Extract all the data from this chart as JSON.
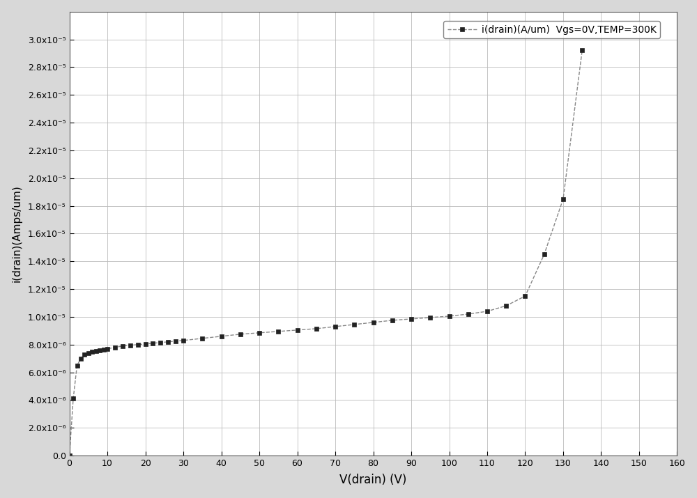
{
  "x": [
    0,
    1,
    2,
    3,
    4,
    5,
    6,
    7,
    8,
    9,
    10,
    12,
    14,
    16,
    18,
    20,
    22,
    24,
    26,
    28,
    30,
    35,
    40,
    45,
    50,
    55,
    60,
    65,
    70,
    75,
    80,
    85,
    90,
    95,
    100,
    105,
    110,
    115,
    120,
    125,
    130,
    135
  ],
  "y": [
    0.0,
    4.1e-06,
    6.5e-06,
    7e-06,
    7.3e-06,
    7.4e-06,
    7.5e-06,
    7.55e-06,
    7.6e-06,
    7.65e-06,
    7.7e-06,
    7.8e-06,
    7.9e-06,
    7.95e-06,
    8e-06,
    8.05e-06,
    8.1e-06,
    8.15e-06,
    8.2e-06,
    8.25e-06,
    8.3e-06,
    8.45e-06,
    8.6e-06,
    8.75e-06,
    8.85e-06,
    8.95e-06,
    9.05e-06,
    9.15e-06,
    9.3e-06,
    9.45e-06,
    9.6e-06,
    9.75e-06,
    9.85e-06,
    9.95e-06,
    1.005e-05,
    1.02e-05,
    1.04e-05,
    1.08e-05,
    1.15e-05,
    1.45e-05,
    1.85e-05,
    2.92e-05
  ],
  "xlabel": "V(drain) (V)",
  "ylabel": "i(drain)(Amps/um)",
  "legend_label": "i(drain)(A/um)  Vgs=0V,TEMP=300K",
  "xlim": [
    0,
    160
  ],
  "ylim": [
    0.0,
    3.2e-05
  ],
  "xticks": [
    0,
    10,
    20,
    30,
    40,
    50,
    60,
    70,
    80,
    90,
    100,
    110,
    120,
    130,
    140,
    150,
    160
  ],
  "ytick_values": [
    0.0,
    2e-06,
    4e-06,
    6e-06,
    8e-06,
    1e-05,
    1.2e-05,
    1.4e-05,
    1.6e-05,
    1.8e-05,
    2e-05,
    2.2e-05,
    2.4e-05,
    2.6e-05,
    2.8e-05,
    3e-05
  ],
  "line_color": "#888888",
  "marker_color": "#222222",
  "marker": "s",
  "plot_bg_color": "#ffffff",
  "fig_bg_color": "#d8d8d8",
  "grid_color": "#bbbbbb",
  "legend_box_color": "#ffffff"
}
